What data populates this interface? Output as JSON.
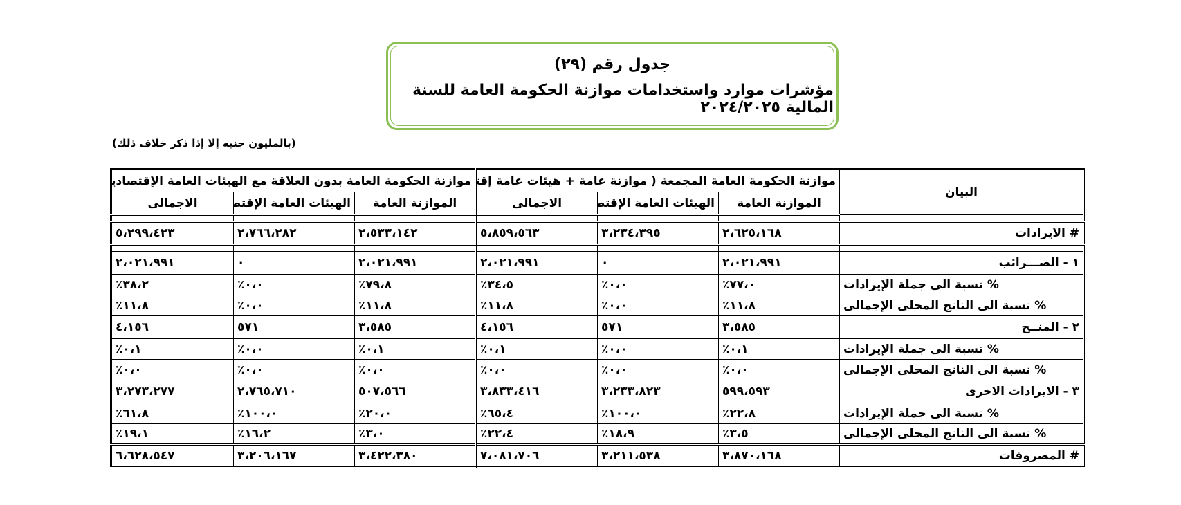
{
  "title": {
    "line1": "جدول رقم (٢٩)",
    "line2": "مؤشرات موارد واستخدامات موازنة الحكومة العامة للسنة المالية ٢٠٢٤/٢٠٢٥"
  },
  "unit_note": "(بالمليون جنيه إلا إذا ذكر خلاف ذلك)",
  "headers": {
    "bayan": "البيان",
    "group1": "موازنة الحكومة العامة المجمعة ( موازنة عامة + هيئات عامة إقتصادية )",
    "group2": "موازنة الحكومة العامة بدون العلاقة مع الهيئات العامة الإقتصادية",
    "col_budget": "الموازنة العامة",
    "col_econ": "الهيئات العامة الإقتصادية",
    "col_total": "الاجمالى"
  },
  "rows": {
    "revenues": {
      "label": "# الايرادات",
      "values": [
        "٢،٦٢٥،١٦٨",
        "٣،٢٣٤،٣٩٥",
        "٥،٨٥٩،٥٦٣",
        "٢،٥٣٣،١٤٢",
        "٢،٧٦٦،٢٨٢",
        "٥،٢٩٩،٤٢٣"
      ]
    },
    "taxes": {
      "label": "١ - الضـــرائب",
      "values": [
        "٢،٠٢١،٩٩١",
        "٠",
        "٢،٠٢١،٩٩١",
        "٢،٠٢١،٩٩١",
        "٠",
        "٢،٠٢١،٩٩١"
      ]
    },
    "taxes_pct_rev": {
      "label": "% نسبة الى جملة الإيرادات",
      "values": [
        "٧٧،٠٪",
        "٠،٠٪",
        "٣٤،٥٪",
        "٧٩،٨٪",
        "٠،٠٪",
        "٣٨،٢٪"
      ]
    },
    "taxes_pct_gdp": {
      "label": "% نسبة الى الناتج المحلى الإجمالى",
      "values": [
        "١١،٨٪",
        "٠،٠٪",
        "١١،٨٪",
        "١١،٨٪",
        "٠،٠٪",
        "١١،٨٪"
      ]
    },
    "grants": {
      "label": "٢ - المنــح",
      "values": [
        "٣،٥٨٥",
        "٥٧١",
        "٤،١٥٦",
        "٣،٥٨٥",
        "٥٧١",
        "٤،١٥٦"
      ]
    },
    "grants_pct_rev": {
      "label": "% نسبة الى جملة الإيرادات",
      "values": [
        "٠،١٪",
        "٠،٠٪",
        "٠،١٪",
        "٠،١٪",
        "٠،٠٪",
        "٠،١٪"
      ]
    },
    "grants_pct_gdp": {
      "label": "% نسبة الى الناتج المحلى الإجمالى",
      "values": [
        "٠،٠٪",
        "٠،٠٪",
        "٠،٠٪",
        "٠،٠٪",
        "٠،٠٪",
        "٠،٠٪"
      ]
    },
    "other": {
      "label": "٣ - الايرادات الاخرى",
      "values": [
        "٥٩٩،٥٩٣",
        "٣،٢٣٣،٨٢٣",
        "٣،٨٣٣،٤١٦",
        "٥٠٧،٥٦٦",
        "٢،٧٦٥،٧١٠",
        "٣،٢٧٣،٢٧٧"
      ]
    },
    "other_pct_rev": {
      "label": "% نسبة الى جملة الإيرادات",
      "values": [
        "٢٢،٨٪",
        "١٠٠،٠٪",
        "٦٥،٤٪",
        "٢٠،٠٪",
        "١٠٠،٠٪",
        "٦١،٨٪"
      ]
    },
    "other_pct_gdp": {
      "label": "% نسبة الى الناتج المحلى الإجمالى",
      "values": [
        "٣،٥٪",
        "١٨،٩٪",
        "٢٢،٤٪",
        "٣،٠٪",
        "١٦،٢٪",
        "١٩،١٪"
      ]
    },
    "expenditures": {
      "label": "# المصروفات",
      "values": [
        "٣،٨٧٠،١٦٨",
        "٣،٢١١،٥٣٨",
        "٧،٠٨١،٧٠٦",
        "٣،٤٢٢،٣٨٠",
        "٣،٢٠٦،١٦٧",
        "٦،٦٢٨،٥٤٧"
      ]
    }
  }
}
